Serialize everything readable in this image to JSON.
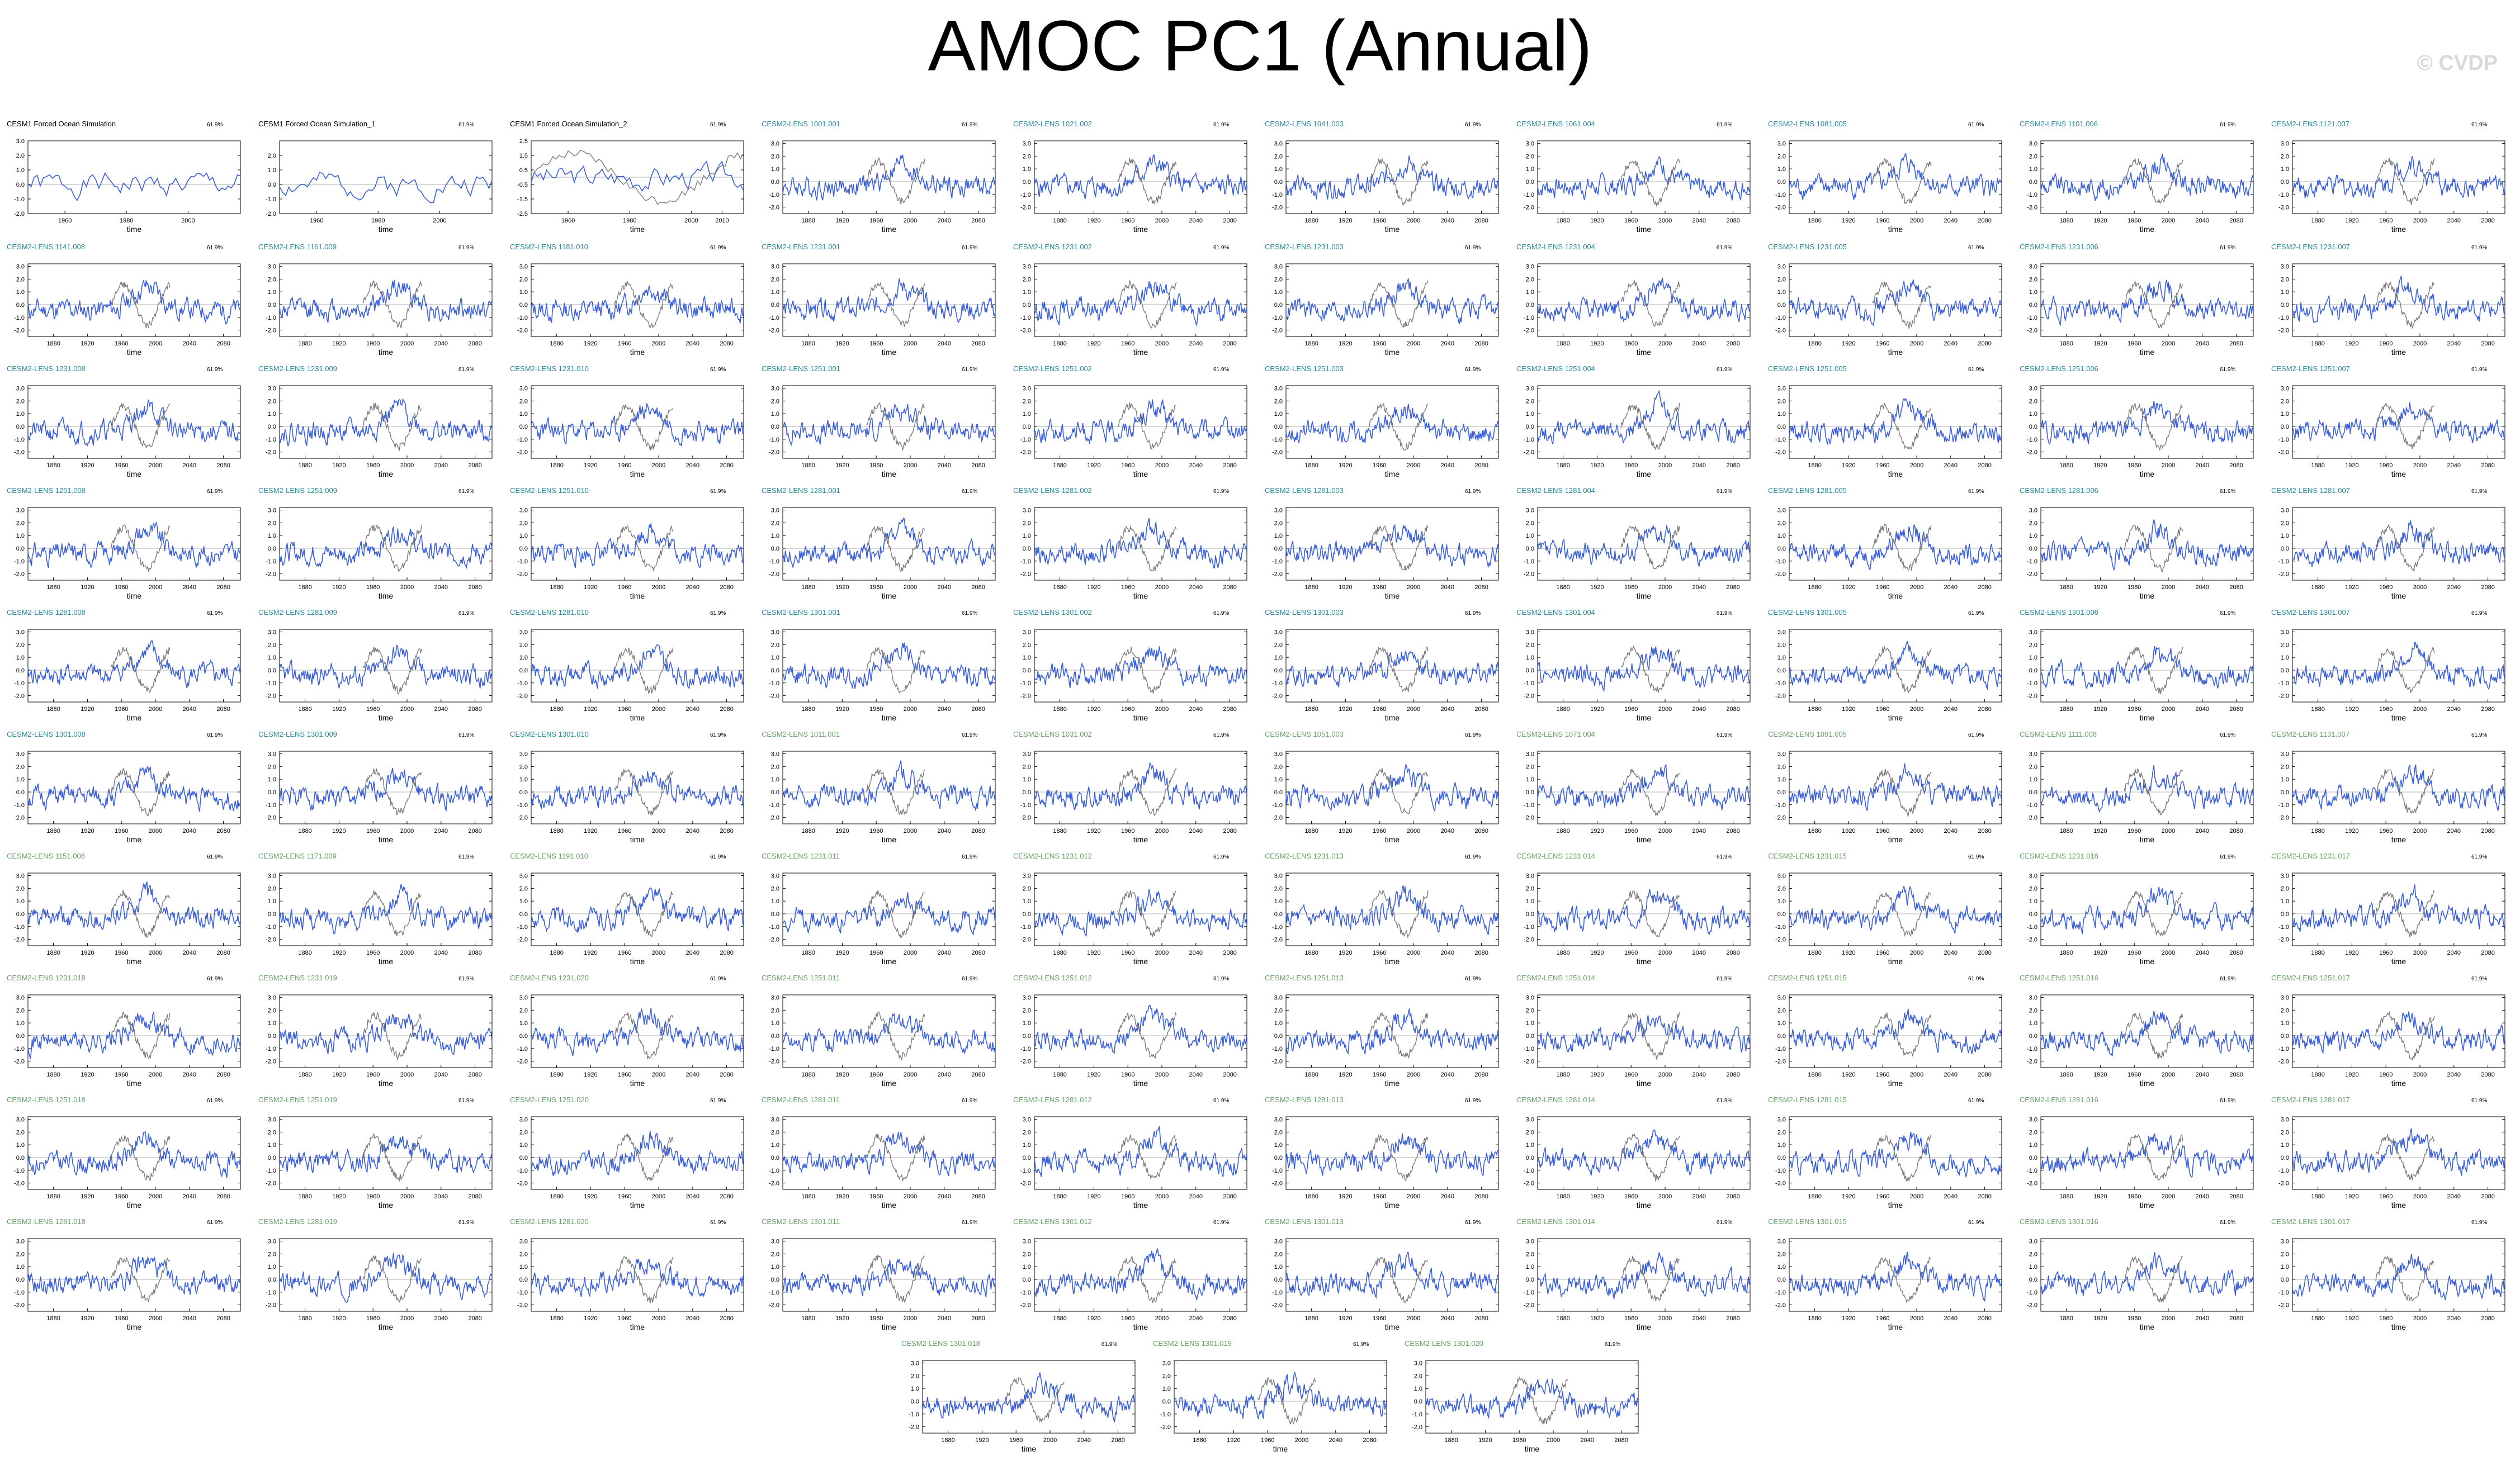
{
  "title": "AMOC PC1 (Annual)",
  "watermark": "© CVDP",
  "colors": {
    "series_main": "#3a5fd9",
    "series_ref": "#7a7a7a",
    "zero_line": "#b0b0b0",
    "title_teal": "#2a8a9a",
    "title_green": "#6aa06a",
    "title_black": "#000000"
  },
  "chart_data": {
    "type": "line",
    "xlabel": "time",
    "grid": false,
    "panels": [
      {
        "title": "CESM1 Forced Ocean Simulation",
        "note": "61.9%",
        "title_color": "black",
        "xlim": [
          1948,
          2017
        ],
        "xticks": [
          1960,
          1980,
          2000
        ],
        "yticks": [
          -2.0,
          -1.0,
          0.0,
          1.0,
          2.0,
          3.0
        ],
        "ylim": [
          -2.0,
          3.0
        ],
        "seed": 1,
        "ref": false
      },
      {
        "title": "CESM1 Forced Ocean Simulation_1",
        "note": "61.9%",
        "title_color": "black",
        "xlim": [
          1948,
          2017
        ],
        "xticks": [
          1960,
          1980,
          2000
        ],
        "yticks": [
          -2.0,
          -1.0,
          0.0,
          1.0,
          2.0
        ],
        "ylim": [
          -2.0,
          3.0
        ],
        "seed": 2,
        "ref": false
      },
      {
        "title": "CESM1 Forced Ocean Simulation_2",
        "note": "61.9%",
        "title_color": "black",
        "xlim": [
          1948,
          2017
        ],
        "xticks": [
          1960,
          1980,
          2000,
          2010
        ],
        "yticks": [
          -2.5,
          -1.5,
          -0.5,
          0.5,
          1.5,
          2.5
        ],
        "ylim": [
          -2.5,
          2.5
        ],
        "seed": 3,
        "ref": true
      },
      {
        "title": "CESM2-LENS 1001.001",
        "note": "61.9%",
        "title_color": "teal",
        "seed": 4
      },
      {
        "title": "CESM2-LENS 1021.002",
        "note": "61.9%",
        "title_color": "teal",
        "seed": 5
      },
      {
        "title": "CESM2-LENS 1041.003",
        "note": "61.9%",
        "title_color": "teal",
        "seed": 6
      },
      {
        "title": "CESM2-LENS 1061.004",
        "note": "61.9%",
        "title_color": "teal",
        "seed": 7
      },
      {
        "title": "CESM2-LENS 1081.005",
        "note": "61.9%",
        "title_color": "teal",
        "seed": 8
      },
      {
        "title": "CESM2-LENS 1101.006",
        "note": "61.9%",
        "title_color": "teal",
        "seed": 9
      },
      {
        "title": "CESM2-LENS 1121.007",
        "note": "61.9%",
        "title_color": "teal",
        "seed": 10
      },
      {
        "title": "CESM2-LENS 1141.008",
        "note": "61.9%",
        "title_color": "teal",
        "seed": 11
      },
      {
        "title": "CESM2-LENS 1161.009",
        "note": "61.9%",
        "title_color": "teal",
        "seed": 12
      },
      {
        "title": "CESM2-LENS 1181.010",
        "note": "61.9%",
        "title_color": "teal",
        "seed": 13
      },
      {
        "title": "CESM2-LENS 1231.001",
        "note": "61.9%",
        "title_color": "teal",
        "seed": 14
      },
      {
        "title": "CESM2-LENS 1231.002",
        "note": "61.9%",
        "title_color": "teal",
        "seed": 15
      },
      {
        "title": "CESM2-LENS 1231.003",
        "note": "61.9%",
        "title_color": "teal",
        "seed": 16
      },
      {
        "title": "CESM2-LENS 1231.004",
        "note": "61.9%",
        "title_color": "teal",
        "seed": 17
      },
      {
        "title": "CESM2-LENS 1231.005",
        "note": "61.9%",
        "title_color": "teal",
        "seed": 18
      },
      {
        "title": "CESM2-LENS 1231.006",
        "note": "61.9%",
        "title_color": "teal",
        "seed": 19
      },
      {
        "title": "CESM2-LENS 1231.007",
        "note": "61.9%",
        "title_color": "teal",
        "seed": 20
      },
      {
        "title": "CESM2-LENS 1231.008",
        "note": "61.9%",
        "title_color": "teal",
        "seed": 21
      },
      {
        "title": "CESM2-LENS 1231.009",
        "note": "61.9%",
        "title_color": "teal",
        "seed": 22
      },
      {
        "title": "CESM2-LENS 1231.010",
        "note": "61.9%",
        "title_color": "teal",
        "seed": 23
      },
      {
        "title": "CESM2-LENS 1251.001",
        "note": "61.9%",
        "title_color": "teal",
        "seed": 24
      },
      {
        "title": "CESM2-LENS 1251.002",
        "note": "61.9%",
        "title_color": "teal",
        "seed": 25
      },
      {
        "title": "CESM2-LENS 1251.003",
        "note": "61.9%",
        "title_color": "teal",
        "seed": 26
      },
      {
        "title": "CESM2-LENS 1251.004",
        "note": "61.9%",
        "title_color": "teal",
        "seed": 27
      },
      {
        "title": "CESM2-LENS 1251.005",
        "note": "61.9%",
        "title_color": "teal",
        "seed": 28
      },
      {
        "title": "CESM2-LENS 1251.006",
        "note": "61.9%",
        "title_color": "teal",
        "seed": 29
      },
      {
        "title": "CESM2-LENS 1251.007",
        "note": "61.9%",
        "title_color": "teal",
        "seed": 30
      },
      {
        "title": "CESM2-LENS 1251.008",
        "note": "61.9%",
        "title_color": "teal",
        "seed": 31
      },
      {
        "title": "CESM2-LENS 1251.009",
        "note": "61.9%",
        "title_color": "teal",
        "seed": 32
      },
      {
        "title": "CESM2-LENS 1251.010",
        "note": "61.9%",
        "title_color": "teal",
        "seed": 33
      },
      {
        "title": "CESM2-LENS 1281.001",
        "note": "61.9%",
        "title_color": "teal",
        "seed": 34
      },
      {
        "title": "CESM2-LENS 1281.002",
        "note": "61.9%",
        "title_color": "teal",
        "seed": 35
      },
      {
        "title": "CESM2-LENS 1281.003",
        "note": "61.9%",
        "title_color": "teal",
        "seed": 36
      },
      {
        "title": "CESM2-LENS 1281.004",
        "note": "61.9%",
        "title_color": "teal",
        "seed": 37
      },
      {
        "title": "CESM2-LENS 1281.005",
        "note": "61.9%",
        "title_color": "teal",
        "seed": 38
      },
      {
        "title": "CESM2-LENS 1281.006",
        "note": "61.9%",
        "title_color": "teal",
        "seed": 39
      },
      {
        "title": "CESM2-LENS 1281.007",
        "note": "61.9%",
        "title_color": "teal",
        "seed": 40
      },
      {
        "title": "CESM2-LENS 1281.008",
        "note": "61.9%",
        "title_color": "teal",
        "seed": 41
      },
      {
        "title": "CESM2-LENS 1281.009",
        "note": "61.9%",
        "title_color": "teal",
        "seed": 42
      },
      {
        "title": "CESM2-LENS 1281.010",
        "note": "61.9%",
        "title_color": "teal",
        "seed": 43
      },
      {
        "title": "CESM2-LENS 1301.001",
        "note": "61.9%",
        "title_color": "teal",
        "seed": 44
      },
      {
        "title": "CESM2-LENS 1301.002",
        "note": "61.9%",
        "title_color": "teal",
        "seed": 45
      },
      {
        "title": "CESM2-LENS 1301.003",
        "note": "61.9%",
        "title_color": "teal",
        "seed": 46
      },
      {
        "title": "CESM2-LENS 1301.004",
        "note": "61.9%",
        "title_color": "teal",
        "seed": 47
      },
      {
        "title": "CESM2-LENS 1301.005",
        "note": "61.9%",
        "title_color": "teal",
        "seed": 48
      },
      {
        "title": "CESM2-LENS 1301.006",
        "note": "61.9%",
        "title_color": "teal",
        "seed": 49
      },
      {
        "title": "CESM2-LENS 1301.007",
        "note": "61.9%",
        "title_color": "teal",
        "seed": 50
      },
      {
        "title": "CESM2-LENS 1301.008",
        "note": "61.9%",
        "title_color": "teal",
        "seed": 51
      },
      {
        "title": "CESM2-LENS 1301.009",
        "note": "61.9%",
        "title_color": "teal",
        "seed": 52
      },
      {
        "title": "CESM2-LENS 1301.010",
        "note": "61.9%",
        "title_color": "teal",
        "seed": 53
      },
      {
        "title": "CESM2-LENS 1011.001",
        "note": "61.9%",
        "title_color": "green",
        "seed": 54
      },
      {
        "title": "CESM2-LENS 1031.002",
        "note": "61.9%",
        "title_color": "green",
        "seed": 55
      },
      {
        "title": "CESM2-LENS 1051.003",
        "note": "61.9%",
        "title_color": "green",
        "seed": 56
      },
      {
        "title": "CESM2-LENS 1071.004",
        "note": "61.9%",
        "title_color": "green",
        "seed": 57
      },
      {
        "title": "CESM2-LENS 1091.005",
        "note": "61.9%",
        "title_color": "green",
        "seed": 58
      },
      {
        "title": "CESM2-LENS 1111.006",
        "note": "61.9%",
        "title_color": "green",
        "seed": 59
      },
      {
        "title": "CESM2-LENS 1131.007",
        "note": "61.9%",
        "title_color": "green",
        "seed": 60
      },
      {
        "title": "CESM2-LENS 1151.008",
        "note": "61.9%",
        "title_color": "green",
        "seed": 61
      },
      {
        "title": "CESM2-LENS 1171.009",
        "note": "61.9%",
        "title_color": "green",
        "seed": 62
      },
      {
        "title": "CESM2-LENS 1191.010",
        "note": "61.9%",
        "title_color": "green",
        "seed": 63
      },
      {
        "title": "CESM2-LENS 1231.011",
        "note": "61.9%",
        "title_color": "green",
        "seed": 64
      },
      {
        "title": "CESM2-LENS 1231.012",
        "note": "61.9%",
        "title_color": "green",
        "seed": 65
      },
      {
        "title": "CESM2-LENS 1231.013",
        "note": "61.9%",
        "title_color": "green",
        "seed": 66
      },
      {
        "title": "CESM2-LENS 1231.014",
        "note": "61.9%",
        "title_color": "green",
        "seed": 67
      },
      {
        "title": "CESM2-LENS 1231.015",
        "note": "61.9%",
        "title_color": "green",
        "seed": 68
      },
      {
        "title": "CESM2-LENS 1231.016",
        "note": "61.9%",
        "title_color": "green",
        "seed": 69
      },
      {
        "title": "CESM2-LENS 1231.017",
        "note": "61.9%",
        "title_color": "green",
        "seed": 70
      },
      {
        "title": "CESM2-LENS 1231.018",
        "note": "61.9%",
        "title_color": "green",
        "seed": 71
      },
      {
        "title": "CESM2-LENS 1231.019",
        "note": "61.9%",
        "title_color": "green",
        "seed": 72
      },
      {
        "title": "CESM2-LENS 1231.020",
        "note": "61.9%",
        "title_color": "green",
        "seed": 73
      },
      {
        "title": "CESM2-LENS 1251.011",
        "note": "61.9%",
        "title_color": "green",
        "seed": 74
      },
      {
        "title": "CESM2-LENS 1251.012",
        "note": "61.9%",
        "title_color": "green",
        "seed": 75
      },
      {
        "title": "CESM2-LENS 1251.013",
        "note": "61.9%",
        "title_color": "green",
        "seed": 76
      },
      {
        "title": "CESM2-LENS 1251.014",
        "note": "61.9%",
        "title_color": "green",
        "seed": 77
      },
      {
        "title": "CESM2-LENS 1251.015",
        "note": "61.9%",
        "title_color": "green",
        "seed": 78
      },
      {
        "title": "CESM2-LENS 1251.016",
        "note": "61.9%",
        "title_color": "green",
        "seed": 79
      },
      {
        "title": "CESM2-LENS 1251.017",
        "note": "61.9%",
        "title_color": "green",
        "seed": 80
      },
      {
        "title": "CESM2-LENS 1251.018",
        "note": "61.9%",
        "title_color": "green",
        "seed": 81
      },
      {
        "title": "CESM2-LENS 1251.019",
        "note": "61.9%",
        "title_color": "green",
        "seed": 82
      },
      {
        "title": "CESM2-LENS 1251.020",
        "note": "61.9%",
        "title_color": "green",
        "seed": 83
      },
      {
        "title": "CESM2-LENS 1281.011",
        "note": "61.9%",
        "title_color": "green",
        "seed": 84
      },
      {
        "title": "CESM2-LENS 1281.012",
        "note": "61.9%",
        "title_color": "green",
        "seed": 85
      },
      {
        "title": "CESM2-LENS 1281.013",
        "note": "61.9%",
        "title_color": "green",
        "seed": 86
      },
      {
        "title": "CESM2-LENS 1281.014",
        "note": "61.9%",
        "title_color": "green",
        "seed": 87
      },
      {
        "title": "CESM2-LENS 1281.015",
        "note": "61.9%",
        "title_color": "green",
        "seed": 88
      },
      {
        "title": "CESM2-LENS 1281.016",
        "note": "61.9%",
        "title_color": "green",
        "seed": 89
      },
      {
        "title": "CESM2-LENS 1281.017",
        "note": "61.9%",
        "title_color": "green",
        "seed": 90
      },
      {
        "title": "CESM2-LENS 1281.018",
        "note": "61.9%",
        "title_color": "green",
        "seed": 91
      },
      {
        "title": "CESM2-LENS 1281.019",
        "note": "61.9%",
        "title_color": "green",
        "seed": 92
      },
      {
        "title": "CESM2-LENS 1281.020",
        "note": "61.9%",
        "title_color": "green",
        "seed": 93
      },
      {
        "title": "CESM2-LENS 1301.011",
        "note": "61.9%",
        "title_color": "green",
        "seed": 94
      },
      {
        "title": "CESM2-LENS 1301.012",
        "note": "61.9%",
        "title_color": "green",
        "seed": 95
      },
      {
        "title": "CESM2-LENS 1301.013",
        "note": "61.9%",
        "title_color": "green",
        "seed": 96
      },
      {
        "title": "CESM2-LENS 1301.014",
        "note": "61.9%",
        "title_color": "green",
        "seed": 97
      },
      {
        "title": "CESM2-LENS 1301.015",
        "note": "61.9%",
        "title_color": "green",
        "seed": 98
      },
      {
        "title": "CESM2-LENS 1301.016",
        "note": "61.9%",
        "title_color": "green",
        "seed": 99
      },
      {
        "title": "CESM2-LENS 1301.017",
        "note": "61.9%",
        "title_color": "green",
        "seed": 100
      },
      {
        "title": "CESM2-LENS 1301.018",
        "note": "61.9%",
        "title_color": "green",
        "seed": 101
      },
      {
        "title": "CESM2-LENS 1301.019",
        "note": "61.9%",
        "title_color": "green",
        "seed": 102
      },
      {
        "title": "CESM2-LENS 1301.020",
        "note": "61.9%",
        "title_color": "green",
        "seed": 103
      }
    ],
    "lens_defaults": {
      "xlim": [
        1850,
        2100
      ],
      "xticks": [
        1880,
        1920,
        1960,
        2000,
        2040,
        2080
      ],
      "yticks": [
        -2.0,
        -1.0,
        0.0,
        1.0,
        2.0,
        3.0
      ],
      "ylim": [
        -2.5,
        3.2
      ],
      "ref_xlim": [
        1948,
        2017
      ]
    }
  }
}
